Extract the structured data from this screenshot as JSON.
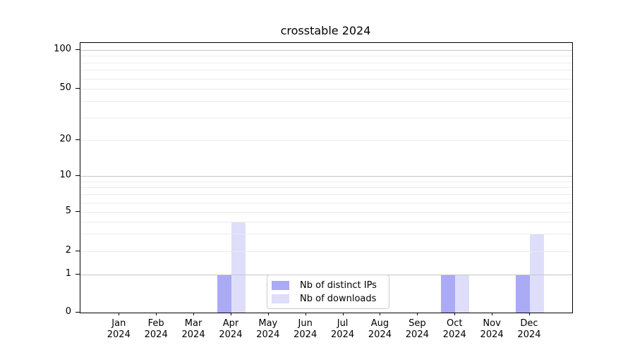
{
  "chart_data": {
    "type": "bar",
    "title": "crosstable 2024",
    "categories": [
      "Jan",
      "Feb",
      "Mar",
      "Apr",
      "May",
      "Jun",
      "Jul",
      "Aug",
      "Sep",
      "Oct",
      "Nov",
      "Dec"
    ],
    "x_second_line": "2024",
    "series": [
      {
        "name": "Nb of distinct IPs",
        "color": "#aaaaf5",
        "values": [
          0,
          0,
          0,
          1,
          0,
          0,
          0,
          0,
          0,
          1,
          0,
          1
        ]
      },
      {
        "name": "Nb of downloads",
        "color": "#dedefa",
        "values": [
          0,
          0,
          0,
          4,
          0,
          0,
          0,
          0,
          0,
          1,
          0,
          3
        ]
      }
    ],
    "yaxis": {
      "scale": "log-like (linear below 1)",
      "tick_labels": [
        "100",
        "50",
        "20",
        "10",
        "5",
        "2",
        "1",
        "0"
      ],
      "tick_values": [
        100,
        50,
        20,
        10,
        5,
        2,
        1,
        0
      ],
      "gridlines_light": [
        2,
        3,
        4,
        5,
        6,
        7,
        8,
        9,
        20,
        30,
        40,
        50,
        60,
        70,
        80,
        90
      ],
      "gridlines_dark": [
        1,
        10,
        100
      ],
      "ylim": [
        0,
        115
      ]
    },
    "grid": true,
    "legend_position": "lower center",
    "colors": {
      "bar_dark": "#aaaaf5",
      "bar_light": "#dedefa",
      "grid_light": "#ececec",
      "grid_dark": "#c6c6c6",
      "spine": "#000000"
    }
  }
}
